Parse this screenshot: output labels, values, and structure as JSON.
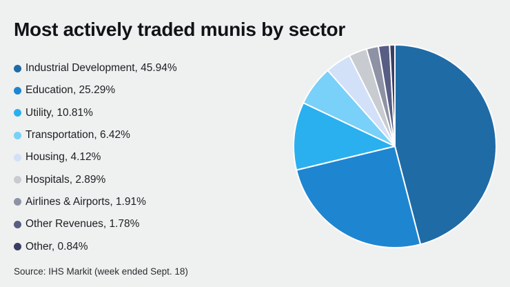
{
  "background": "#eff0f0",
  "title": "Most actively traded munis by sector",
  "source": "Source: IHS Markit (week ended Sept. 18)",
  "chart_data": {
    "type": "pie",
    "title": "Most actively traded munis by sector",
    "categories": [
      "Industrial Development",
      "Education",
      "Utility",
      "Transportation",
      "Housing",
      "Hospitals",
      "Airlines & Airports",
      "Other Revenues",
      "Other"
    ],
    "values": [
      45.94,
      25.29,
      10.81,
      6.42,
      4.12,
      2.89,
      1.91,
      1.78,
      0.84
    ],
    "colors": [
      "#1f6ba6",
      "#1e86d1",
      "#2ab0ee",
      "#79d0f8",
      "#d2e0f8",
      "#c8cbd0",
      "#8e92a5",
      "#575d83",
      "#3a3e63"
    ],
    "legend_labels": [
      "Industrial Development, 45.94%",
      "Education, 25.29%",
      "Utility, 10.81%",
      "Transportation, 6.42%",
      "Housing, 4.12%",
      "Hospitals, 2.89%",
      "Airlines & Airports, 1.91%",
      "Other Revenues, 1.78%",
      "Other, 0.84%"
    ],
    "start_angle_deg": -90,
    "direction": "clockwise",
    "legend_position": "left",
    "slice_stroke": "#ffffff",
    "slice_stroke_width": 2
  }
}
